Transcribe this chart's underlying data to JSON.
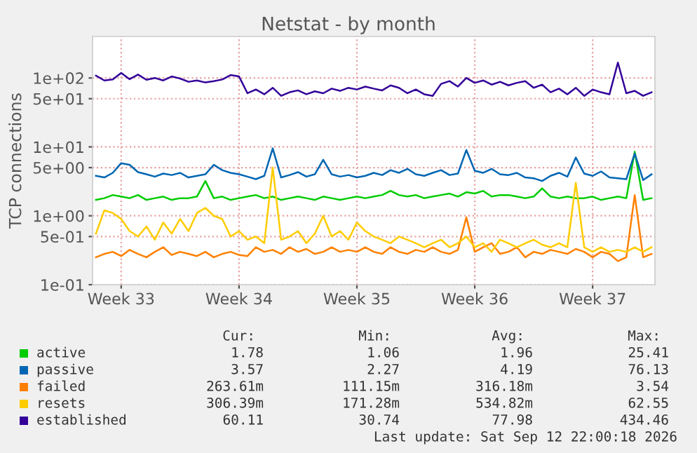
{
  "chart_data": {
    "type": "line",
    "title": "Netstat - by month",
    "ylabel": "TCP connections",
    "categories": [
      null,
      null,
      null,
      "Week 33",
      null,
      null,
      null,
      null,
      null,
      null,
      null,
      null,
      null,
      null,
      null,
      null,
      null,
      "Week 34",
      null,
      null,
      null,
      null,
      null,
      null,
      null,
      null,
      null,
      null,
      null,
      null,
      null,
      "Week 35",
      null,
      null,
      null,
      null,
      null,
      null,
      null,
      null,
      null,
      null,
      null,
      null,
      null,
      "Week 36",
      null,
      null,
      null,
      null,
      null,
      null,
      null,
      null,
      null,
      null,
      null,
      null,
      null,
      "Week 37",
      null,
      null,
      null,
      null,
      null,
      null,
      null
    ],
    "series": [
      {
        "name": "active",
        "color": "#00cc00",
        "values": [
          1.7,
          1.8,
          2.0,
          1.9,
          1.8,
          2.0,
          1.7,
          1.8,
          1.9,
          1.7,
          1.8,
          1.8,
          1.9,
          3.2,
          1.8,
          1.9,
          1.7,
          1.8,
          1.9,
          2.0,
          1.8,
          1.9,
          1.7,
          1.8,
          1.9,
          1.8,
          1.7,
          1.9,
          1.8,
          1.7,
          1.8,
          1.9,
          1.8,
          1.9,
          2.0,
          2.3,
          2.0,
          1.9,
          2.0,
          1.8,
          1.9,
          2.0,
          2.1,
          1.9,
          2.2,
          2.1,
          2.3,
          1.9,
          2.0,
          2.0,
          1.9,
          1.8,
          1.9,
          2.5,
          1.9,
          1.8,
          1.9,
          1.8,
          1.8,
          1.9,
          1.7,
          1.8,
          1.9,
          1.8,
          8.5,
          1.7,
          1.8
        ]
      },
      {
        "name": "passive",
        "color": "#0066b3",
        "values": [
          3.8,
          3.6,
          4.2,
          5.8,
          5.5,
          4.3,
          4.0,
          3.7,
          4.1,
          3.9,
          4.2,
          3.6,
          3.8,
          4.0,
          5.5,
          4.6,
          4.2,
          4.0,
          3.7,
          3.4,
          3.8,
          9.5,
          3.6,
          3.9,
          4.3,
          3.7,
          4.0,
          6.5,
          4.0,
          3.7,
          3.9,
          3.6,
          3.8,
          4.2,
          3.9,
          4.6,
          4.2,
          4.8,
          4.0,
          3.8,
          4.2,
          4.6,
          3.9,
          4.1,
          9.0,
          4.5,
          4.2,
          4.8,
          4.0,
          3.9,
          4.2,
          3.6,
          3.5,
          3.2,
          3.8,
          4.2,
          3.7,
          7.0,
          4.1,
          3.8,
          4.4,
          3.6,
          3.5,
          3.4,
          8.0,
          3.3,
          4.0
        ]
      },
      {
        "name": "failed",
        "color": "#ff8000",
        "values": [
          0.25,
          0.28,
          0.3,
          0.26,
          0.32,
          0.28,
          0.25,
          0.3,
          0.35,
          0.27,
          0.3,
          0.28,
          0.26,
          0.3,
          0.25,
          0.28,
          0.3,
          0.27,
          0.26,
          0.35,
          0.3,
          0.32,
          0.28,
          0.35,
          0.3,
          0.33,
          0.28,
          0.3,
          0.35,
          0.3,
          0.32,
          0.3,
          0.35,
          0.3,
          0.28,
          0.35,
          0.3,
          0.28,
          0.32,
          0.3,
          0.35,
          0.3,
          0.28,
          0.32,
          0.95,
          0.3,
          0.35,
          0.4,
          0.28,
          0.3,
          0.35,
          0.25,
          0.3,
          0.28,
          0.32,
          0.3,
          0.28,
          0.33,
          0.3,
          0.25,
          0.3,
          0.28,
          0.22,
          0.25,
          2.0,
          0.25,
          0.28
        ]
      },
      {
        "name": "resets",
        "color": "#ffcc00",
        "values": [
          0.55,
          1.2,
          1.1,
          0.9,
          0.6,
          0.5,
          0.7,
          0.45,
          0.8,
          0.55,
          0.9,
          0.6,
          1.1,
          1.3,
          1.0,
          0.9,
          0.5,
          0.6,
          0.45,
          0.5,
          0.4,
          5.0,
          0.45,
          0.5,
          0.6,
          0.4,
          0.55,
          1.0,
          0.5,
          0.6,
          0.45,
          0.8,
          0.6,
          0.5,
          0.45,
          0.4,
          0.5,
          0.45,
          0.4,
          0.35,
          0.4,
          0.45,
          0.35,
          0.4,
          0.5,
          0.35,
          0.4,
          0.3,
          0.45,
          0.4,
          0.35,
          0.4,
          0.45,
          0.38,
          0.35,
          0.4,
          0.35,
          3.0,
          0.35,
          0.3,
          0.35,
          0.3,
          0.32,
          0.3,
          0.35,
          0.3,
          0.35
        ]
      },
      {
        "name": "established",
        "color": "#330099",
        "values": [
          108,
          92,
          95,
          118,
          96,
          112,
          94,
          100,
          92,
          105,
          98,
          88,
          92,
          86,
          90,
          95,
          110,
          105,
          60,
          68,
          58,
          72,
          55,
          62,
          66,
          58,
          64,
          60,
          70,
          65,
          72,
          68,
          75,
          70,
          66,
          78,
          72,
          60,
          68,
          58,
          55,
          82,
          90,
          75,
          100,
          85,
          92,
          80,
          88,
          78,
          85,
          90,
          72,
          80,
          62,
          70,
          58,
          72,
          55,
          68,
          62,
          58,
          167,
          60,
          65,
          55,
          62
        ]
      }
    ],
    "log": "y",
    "ylim": [
      0.1,
      400
    ],
    "yticks": [
      {
        "value": 0.1,
        "label": "1e-01"
      },
      {
        "value": 0.5,
        "label": "5e-01"
      },
      {
        "value": 1,
        "label": "1e+00"
      },
      {
        "value": 5,
        "label": "5e+00"
      },
      {
        "value": 10,
        "label": "1e+01"
      },
      {
        "value": 50,
        "label": "5e+01"
      },
      {
        "value": 100,
        "label": "1e+02"
      }
    ],
    "grid": true,
    "legend": "bottom",
    "marker": "none",
    "line_style": "solid",
    "annotations": [
      "Cur:",
      "Min:",
      "Avg:",
      "Max:",
      "1.78",
      "1.06",
      "1.96",
      "25.41",
      "3.57",
      "2.27",
      "4.19",
      "76.13",
      "263.61m",
      "111.15m",
      "316.18m",
      "3.54",
      "306.39m",
      "171.28m",
      "534.82m",
      "62.55",
      "60.11",
      "30.74",
      "77.98",
      "434.46",
      "Last update: Sat Sep 12 22:00:18 2026"
    ]
  }
}
